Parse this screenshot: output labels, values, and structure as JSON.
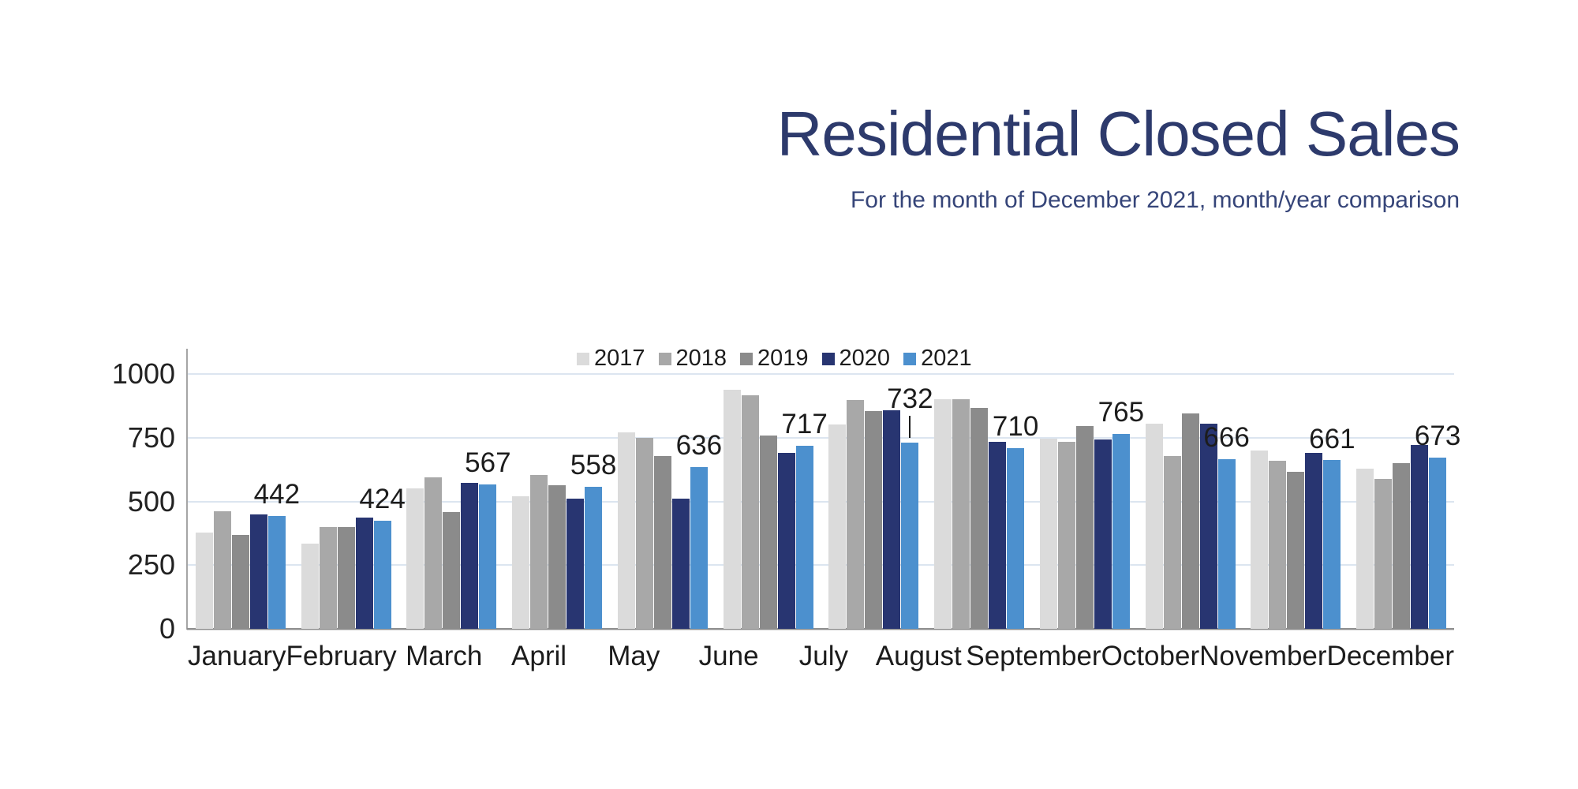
{
  "header": {
    "title": "Residential Closed Sales",
    "subtitle": "For the month of December 2021, month/year comparison"
  },
  "colors": {
    "title_text": "#2D3A6C",
    "subtitle_text": "#364579",
    "axis_line": "#A5A5A5",
    "gridline": "#DCE5F0",
    "label_text": "#1C1C1C"
  },
  "chart_data": {
    "type": "bar",
    "title": "Residential Closed Sales",
    "subtitle": "For the month of December 2021, month/year comparison",
    "categories": [
      "January",
      "February",
      "March",
      "April",
      "May",
      "June",
      "July",
      "August",
      "September",
      "October",
      "November",
      "December"
    ],
    "series": [
      {
        "name": "2017",
        "color": "#DBDBDB",
        "values": [
          378,
          334,
          551,
          520,
          771,
          938,
          802,
          900,
          745,
          804,
          701,
          629
        ]
      },
      {
        "name": "2018",
        "color": "#A8A8A8",
        "values": [
          460,
          398,
          595,
          603,
          749,
          915,
          897,
          901,
          735,
          678,
          659,
          587
        ]
      },
      {
        "name": "2019",
        "color": "#8B8B8B",
        "values": [
          367,
          399,
          457,
          564,
          677,
          760,
          856,
          868,
          796,
          845,
          616,
          649
        ]
      },
      {
        "name": "2020",
        "color": "#283571",
        "values": [
          450,
          437,
          572,
          510,
          510,
          689,
          857,
          735,
          744,
          806,
          691,
          722
        ]
      },
      {
        "name": "2021",
        "color": "#4C90CE",
        "values": [
          442,
          424,
          567,
          558,
          636,
          717,
          732,
          710,
          765,
          666,
          661,
          673
        ],
        "data_labels": true
      }
    ],
    "data_label_series": "2021",
    "data_labels_shown": [
      442,
      424,
      567,
      558,
      636,
      717,
      732,
      710,
      765,
      666,
      661,
      673
    ],
    "label_with_leader_line": "July",
    "ylim": [
      0,
      1000
    ],
    "yticks": [
      "0",
      "250",
      "500",
      "750",
      "1000"
    ],
    "grid": "horizontal",
    "legend_position": "top-center"
  }
}
